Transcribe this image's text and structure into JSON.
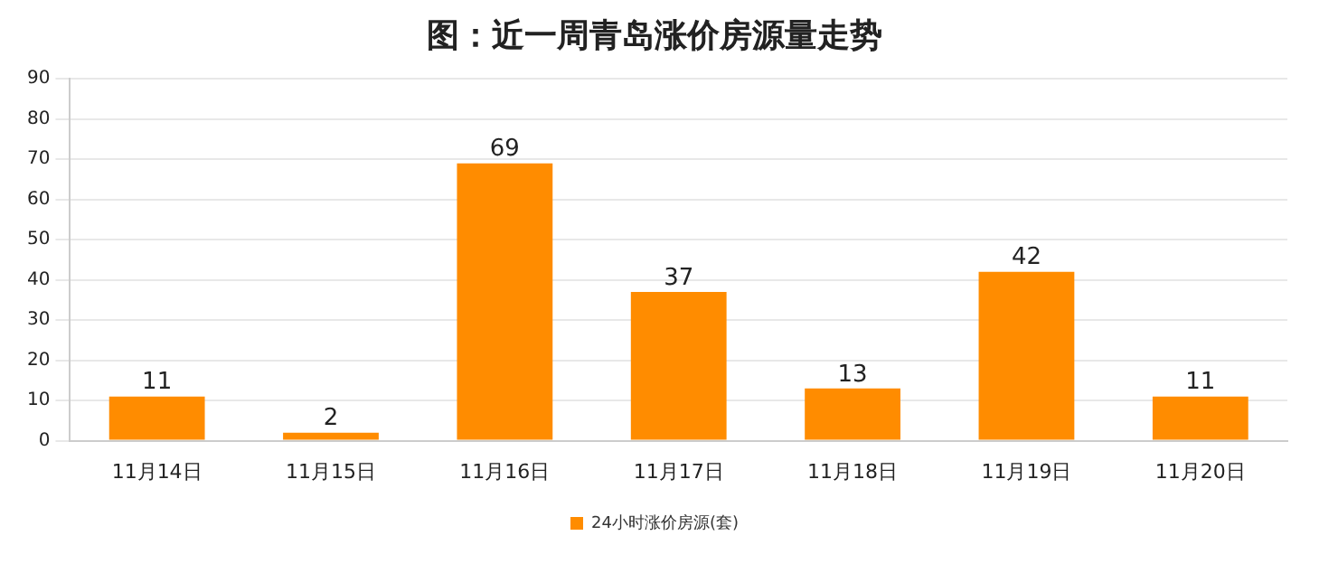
{
  "chart_data": {
    "type": "bar",
    "title": "图：近一周青岛涨价房源量走势",
    "categories": [
      "11月14日",
      "11月15日",
      "11月16日",
      "11月17日",
      "11月18日",
      "11月19日",
      "11月20日"
    ],
    "series": [
      {
        "name": "24小时涨价房源(套)",
        "color": "#ff8c00",
        "values": [
          11,
          2,
          69,
          37,
          13,
          42,
          11
        ]
      }
    ],
    "ylim": [
      0,
      90
    ],
    "yticks": [
      0,
      10,
      20,
      30,
      40,
      50,
      60,
      70,
      80,
      90
    ],
    "grid": "y",
    "legend": "bottom",
    "data_labels": true
  }
}
